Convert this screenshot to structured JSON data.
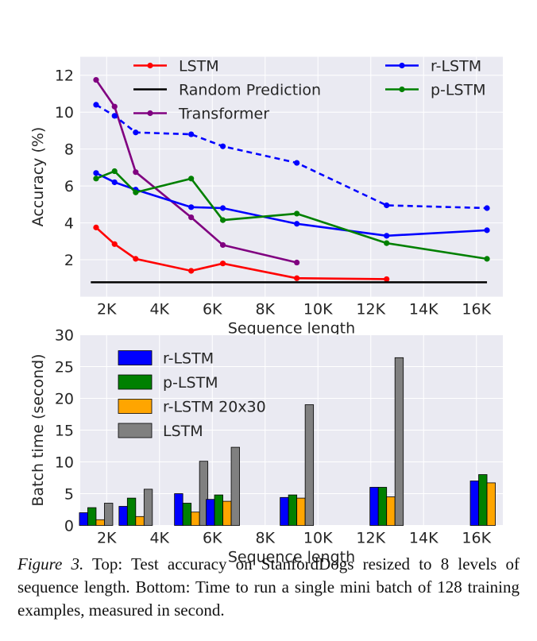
{
  "chart_data": [
    {
      "type": "line",
      "xlabel": "Sequence length",
      "ylabel": "Accuracy (%)",
      "xlim": [
        1000,
        17000
      ],
      "ylim": [
        0,
        13
      ],
      "xticks": [
        {
          "v": 2000,
          "label": "2K"
        },
        {
          "v": 4000,
          "label": "4K"
        },
        {
          "v": 6000,
          "label": "6K"
        },
        {
          "v": 8000,
          "label": "8K"
        },
        {
          "v": 10000,
          "label": "10K"
        },
        {
          "v": 12000,
          "label": "12K"
        },
        {
          "v": 14000,
          "label": "14K"
        },
        {
          "v": 16000,
          "label": "16K"
        }
      ],
      "yticks": [
        {
          "v": 2,
          "label": "2"
        },
        {
          "v": 4,
          "label": "4"
        },
        {
          "v": 6,
          "label": "6"
        },
        {
          "v": 8,
          "label": "8"
        },
        {
          "v": 10,
          "label": "10"
        },
        {
          "v": 12,
          "label": "12"
        }
      ],
      "grid": true,
      "legend": "top",
      "series": [
        {
          "name": "LSTM",
          "color": "#ff0000",
          "marker": true,
          "dash": false,
          "x": [
            1600,
            2300,
            3100,
            5200,
            6400,
            9200,
            12600
          ],
          "y": [
            3.75,
            2.85,
            2.05,
            1.4,
            1.8,
            1.0,
            0.95
          ]
        },
        {
          "name": "Random Prediction",
          "color": "#000000",
          "marker": false,
          "dash": false,
          "x": [
            1400,
            16400
          ],
          "y": [
            0.78,
            0.78
          ]
        },
        {
          "name": "Transformer",
          "color": "#800080",
          "marker": true,
          "dash": false,
          "x": [
            1600,
            2300,
            3100,
            5200,
            6400,
            9200
          ],
          "y": [
            11.75,
            10.3,
            6.75,
            4.3,
            2.8,
            1.85
          ]
        },
        {
          "name": "r-LSTM",
          "color": "#0000ff",
          "marker": true,
          "dash": false,
          "x": [
            1600,
            2300,
            3100,
            5200,
            6400,
            9200,
            12600,
            16400
          ],
          "y": [
            6.7,
            6.2,
            5.8,
            4.85,
            4.8,
            3.95,
            3.3,
            3.6
          ]
        },
        {
          "name": "",
          "color": "#0000ff",
          "marker": true,
          "dash": true,
          "x": [
            1600,
            2300,
            3100,
            5200,
            6400,
            9200,
            12600,
            16400
          ],
          "y": [
            10.4,
            9.8,
            8.9,
            8.8,
            8.15,
            7.25,
            4.95,
            4.8
          ]
        },
        {
          "name": "p-LSTM",
          "color": "#008000",
          "marker": true,
          "dash": false,
          "x": [
            1600,
            2300,
            3100,
            5200,
            6400,
            9200,
            12600,
            16400
          ],
          "y": [
            6.4,
            6.8,
            5.65,
            6.4,
            4.15,
            4.5,
            2.9,
            2.05
          ]
        }
      ]
    },
    {
      "type": "bar",
      "xlabel": "Sequence length",
      "ylabel": "Batch time (second)",
      "xlim": [
        1000,
        17000
      ],
      "ylim": [
        0,
        30
      ],
      "xticks": [
        {
          "v": 2000,
          "label": "2K"
        },
        {
          "v": 4000,
          "label": "4K"
        },
        {
          "v": 6000,
          "label": "6K"
        },
        {
          "v": 8000,
          "label": "8K"
        },
        {
          "v": 10000,
          "label": "10K"
        },
        {
          "v": 12000,
          "label": "12K"
        },
        {
          "v": 14000,
          "label": "14K"
        },
        {
          "v": 16000,
          "label": "16K"
        }
      ],
      "yticks": [
        {
          "v": 0,
          "label": "0"
        },
        {
          "v": 5,
          "label": "5"
        },
        {
          "v": 10,
          "label": "10"
        },
        {
          "v": 15,
          "label": "15"
        },
        {
          "v": 20,
          "label": "20"
        },
        {
          "v": 25,
          "label": "25"
        },
        {
          "v": 30,
          "label": "30"
        }
      ],
      "grid": true,
      "legend": "top-left",
      "group_x": [
        1600,
        3100,
        5200,
        6400,
        9200,
        12600,
        16400
      ],
      "series": [
        {
          "name": "r-LSTM",
          "color": "#0000ff",
          "values": [
            2.0,
            3.0,
            5.0,
            4.1,
            4.4,
            6.0,
            7.0
          ]
        },
        {
          "name": "p-LSTM",
          "color": "#008000",
          "values": [
            2.8,
            4.3,
            3.5,
            4.8,
            4.8,
            6.0,
            8.0
          ]
        },
        {
          "name": "r-LSTM 20x30",
          "color": "#ffa500",
          "values": [
            0.9,
            1.4,
            2.1,
            3.8,
            4.3,
            4.5,
            6.7
          ]
        },
        {
          "name": "LSTM",
          "color": "#808080",
          "values": [
            3.5,
            5.7,
            10.1,
            12.3,
            19.0,
            26.4,
            null
          ]
        }
      ]
    }
  ],
  "caption": {
    "label": "Figure 3.",
    "text": " Top: Test accuracy on StanfordDogs resized to 8 levels of sequence length. Bottom: Time to run a single mini batch of 128 training examples, measured in second."
  }
}
